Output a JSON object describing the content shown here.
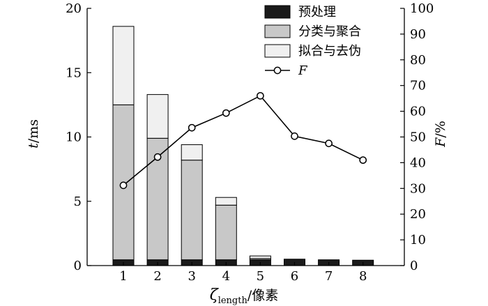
{
  "chart_data": {
    "type": "bar",
    "stacked": true,
    "categories": [
      "1",
      "2",
      "3",
      "4",
      "5",
      "6",
      "7",
      "8"
    ],
    "series": [
      {
        "name": "预处理",
        "axis": "left",
        "color": "#1a1a1a",
        "values": [
          0.45,
          0.45,
          0.45,
          0.45,
          0.45,
          0.5,
          0.45,
          0.42
        ]
      },
      {
        "name": "分类与聚合",
        "axis": "left",
        "color": "#c8c8c8",
        "values": [
          12.05,
          9.45,
          7.75,
          4.25,
          0.1,
          0.0,
          0.0,
          0.0
        ]
      },
      {
        "name": "拟合与去伪",
        "axis": "left",
        "color": "#f0f0f0",
        "values": [
          6.1,
          3.4,
          1.2,
          0.6,
          0.2,
          0.0,
          0.0,
          0.0
        ]
      },
      {
        "name": "F",
        "type": "line",
        "axis": "right",
        "values": [
          31.2,
          42.2,
          53.6,
          59.3,
          66.0,
          50.3,
          47.5,
          41.0
        ]
      }
    ],
    "xlabel": {
      "sym": "ζ",
      "sub": "length",
      "rest": "/像素"
    },
    "ylabel_left": {
      "sym": "t",
      "rest": "/ms"
    },
    "ylabel_right": {
      "sym": "F",
      "rest": "/%"
    },
    "ylim_left": [
      0,
      20
    ],
    "yticks_left": [
      0,
      5,
      10,
      15,
      20
    ],
    "ylim_right": [
      0,
      100
    ],
    "yticks_right": [
      0,
      10,
      20,
      30,
      40,
      50,
      60,
      70,
      80,
      90,
      100
    ],
    "legend_position": "top-right",
    "grid": false
  }
}
